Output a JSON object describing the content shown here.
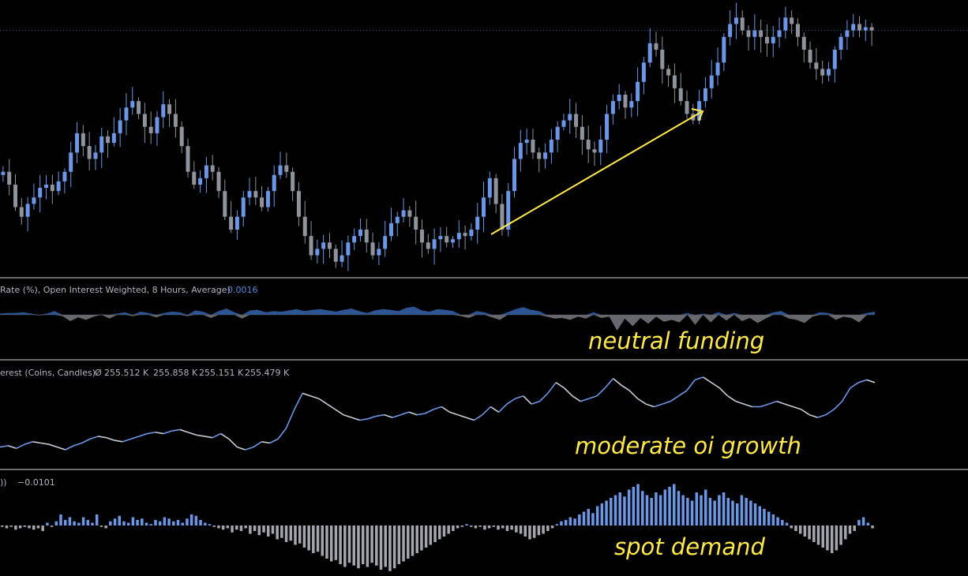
{
  "colors": {
    "background": "#000000",
    "up": "#6d97e6",
    "down": "#8f949c",
    "divider": "#d9d9d9",
    "annotation": "#ffe94d",
    "label": "#b2b5be",
    "value_blue": "#5b8ad6"
  },
  "panes": {
    "funding": {
      "legend": "Rate (%), Open Interest Weighted, 8 Hours, Average)",
      "value": "0.0016"
    },
    "oi": {
      "legend": "erest (Coins, Candles)",
      "values": [
        "Ø",
        "255.512 K",
        "255.858 K",
        "255.151 K",
        "255.479 K"
      ]
    },
    "spot": {
      "legend": "))",
      "value": "−0.0101"
    }
  },
  "annotations": {
    "funding": "neutral funding",
    "oi": "moderate oi growth",
    "spot": "spot demand"
  },
  "chart_data": [
    {
      "type": "candlestick",
      "name": "price",
      "grid": false,
      "closes": [
        66,
        62,
        55,
        52,
        56,
        58,
        61,
        62,
        60,
        63,
        66,
        72,
        78,
        74,
        70,
        72,
        77,
        75,
        78,
        82,
        86,
        88,
        84,
        80,
        78,
        83,
        87,
        84,
        80,
        74,
        66,
        62,
        64,
        68,
        66,
        60,
        52,
        48,
        52,
        58,
        60,
        58,
        55,
        60,
        65,
        68,
        66,
        60,
        52,
        46,
        40,
        42,
        44,
        42,
        38,
        40,
        44,
        46,
        48,
        44,
        40,
        42,
        46,
        50,
        52,
        54,
        52,
        48,
        44,
        42,
        45,
        46,
        44,
        45,
        47,
        46,
        48,
        52,
        58,
        64,
        56,
        48,
        60,
        70,
        75,
        76,
        72,
        70,
        72,
        76,
        80,
        82,
        84,
        80,
        76,
        73,
        72,
        76,
        84,
        88,
        90,
        86,
        88,
        94,
        100,
        106,
        104,
        98,
        96,
        92,
        88,
        84,
        82,
        88,
        92,
        96,
        100,
        108,
        112,
        114,
        110,
        108,
        110,
        108,
        106,
        108,
        110,
        114,
        112,
        108,
        104,
        100,
        98,
        96,
        98,
        104,
        108,
        110,
        112,
        110,
        111,
        110
      ]
    },
    {
      "type": "area",
      "name": "funding",
      "baseline": 0,
      "values": [
        0.2,
        0.3,
        0.3,
        0.4,
        0.2,
        -0.1,
        0.2,
        0.6,
        -0.2,
        -1,
        -0.4,
        -0.8,
        -0.3,
        0.1,
        -0.6,
        0.2,
        0.4,
        -0.2,
        0.5,
        0.3,
        -0.4,
        0.3,
        0.5,
        0.4,
        -0.2,
        0.7,
        0.5,
        -0.5,
        0.6,
        1,
        0.4,
        -0.6,
        0.7,
        0.8,
        0.4,
        0.6,
        0.5,
        0.7,
        0.9,
        0.6,
        0.8,
        0.9,
        0.7,
        0.5,
        0.8,
        1,
        0.6,
        0.3,
        0.7,
        0.9,
        0.8,
        0.6,
        1.1,
        1.3,
        0.7,
        0.5,
        0.9,
        0.8,
        0.6,
        -0.2,
        -0.5,
        0.6,
        0.4,
        -0.4,
        -0.8,
        0.4,
        0.9,
        1.2,
        0.8,
        0.6,
        -0.3,
        -0.6,
        -0.5,
        -0.8,
        -0.3,
        -0.6,
        0.4,
        -0.5,
        -0.3,
        -2.5,
        -0.6,
        -1.8,
        -0.5,
        -1.4,
        -0.3,
        -1.1,
        -0.8,
        -1.2,
        0.3,
        -1.6,
        0.2,
        -1.2,
        0.4,
        -0.9,
        0.3,
        -1,
        -0.5,
        -1.3,
        -0.6,
        0.4,
        0.6,
        -0.6,
        -0.8,
        -1.3,
        -0.3,
        0.4,
        0.3,
        -0.8,
        -0.3,
        -0.5,
        -1.2,
        0.3,
        0.5
      ]
    },
    {
      "type": "line",
      "name": "open_interest",
      "values": [
        42,
        43,
        41,
        44,
        46,
        45,
        44,
        42,
        40,
        43,
        45,
        48,
        50,
        49,
        47,
        46,
        48,
        50,
        52,
        53,
        52,
        54,
        55,
        53,
        51,
        50,
        49,
        52,
        48,
        42,
        40,
        42,
        46,
        45,
        48,
        56,
        70,
        82,
        80,
        78,
        74,
        70,
        66,
        64,
        62,
        63,
        65,
        66,
        64,
        66,
        68,
        66,
        67,
        70,
        72,
        68,
        66,
        64,
        62,
        66,
        72,
        68,
        74,
        78,
        80,
        74,
        76,
        82,
        90,
        86,
        80,
        76,
        78,
        80,
        86,
        93,
        88,
        84,
        78,
        74,
        72,
        74,
        76,
        80,
        84,
        92,
        94,
        90,
        86,
        80,
        76,
        74,
        72,
        72,
        74,
        76,
        74,
        72,
        70,
        66,
        64,
        66,
        70,
        76,
        86,
        90,
        92,
        90
      ]
    },
    {
      "type": "histogram",
      "name": "spot_demand",
      "baseline": 0,
      "values": [
        -1,
        -2,
        -1,
        -3,
        -2,
        -1,
        -2,
        -3,
        -2,
        -4,
        2,
        -1,
        3,
        8,
        4,
        6,
        3,
        2,
        6,
        4,
        2,
        8,
        -1,
        -2,
        3,
        5,
        7,
        3,
        2,
        6,
        4,
        5,
        2,
        1,
        4,
        3,
        6,
        5,
        3,
        4,
        2,
        5,
        8,
        7,
        4,
        2,
        1,
        -1,
        -2,
        -3,
        -2,
        -5,
        -3,
        -4,
        -2,
        -6,
        -4,
        -7,
        -5,
        -8,
        -6,
        -10,
        -9,
        -12,
        -11,
        -14,
        -13,
        -16,
        -18,
        -20,
        -19,
        -22,
        -24,
        -26,
        -25,
        -28,
        -30,
        -27,
        -29,
        -31,
        -28,
        -30,
        -27,
        -29,
        -32,
        -30,
        -33,
        -31,
        -28,
        -26,
        -24,
        -22,
        -20,
        -18,
        -16,
        -14,
        -12,
        -10,
        -8,
        -6,
        -4,
        -2,
        -1,
        1,
        -1,
        -2,
        -1,
        -3,
        -2,
        -1,
        -3,
        -2,
        -4,
        -3,
        -5,
        -6,
        -8,
        -10,
        -9,
        -7,
        -6,
        -4,
        -2,
        1,
        3,
        4,
        6,
        5,
        8,
        10,
        12,
        9,
        14,
        16,
        18,
        20,
        22,
        24,
        21,
        26,
        28,
        30,
        25,
        22,
        20,
        24,
        22,
        26,
        28,
        30,
        25,
        22,
        20,
        18,
        24,
        22,
        26,
        20,
        18,
        22,
        24,
        20,
        18,
        16,
        22,
        20,
        18,
        16,
        14,
        12,
        10,
        8,
        6,
        4,
        2,
        -2,
        -4,
        -6,
        -8,
        -10,
        -12,
        -14,
        -16,
        -18,
        -20,
        -18,
        -14,
        -10,
        -6,
        -4,
        4,
        6,
        2,
        -2
      ]
    }
  ]
}
